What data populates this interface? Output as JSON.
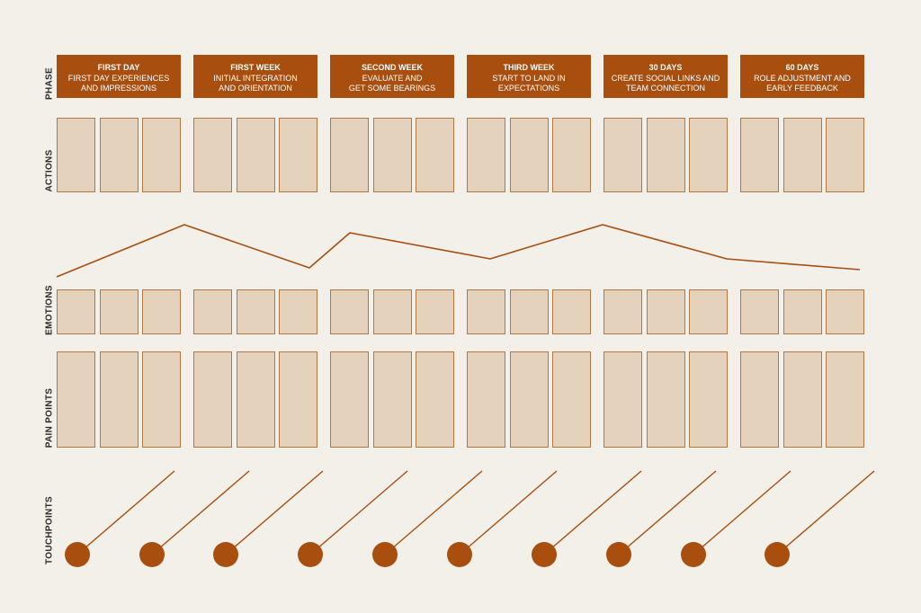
{
  "rows": {
    "phase": "PHASE",
    "actions": "ACTIONS",
    "emotions": "EMOTIONS",
    "pain_points": "PAIN POINTS",
    "touchpoints": "TOUCHPOINTS"
  },
  "phases": [
    {
      "title": "FIRST DAY",
      "line1": "FIRST DAY EXPERIENCES",
      "line2": "AND IMPRESSIONS"
    },
    {
      "title": "FIRST WEEK",
      "line1": "INITIAL INTEGRATION",
      "line2": "AND ORIENTATION"
    },
    {
      "title": "SECOND WEEK",
      "line1": "EVALUATE AND",
      "line2": "GET SOME BEARINGS"
    },
    {
      "title": "THIRD WEEK",
      "line1": "START TO LAND IN",
      "line2": "EXPECTATIONS"
    },
    {
      "title": "30 DAYS",
      "line1": "CREATE SOCIAL LINKS AND",
      "line2": "TEAM CONNECTION"
    },
    {
      "title": "60 DAYS",
      "line1": "ROLE ADJUSTMENT AND",
      "line2": "EARLY FEEDBACK"
    }
  ],
  "colors": {
    "background": "#f3f0ea",
    "accent": "#a84e0e",
    "cell_fill": "#e5d2bd",
    "cell_border": "#b5763f"
  }
}
